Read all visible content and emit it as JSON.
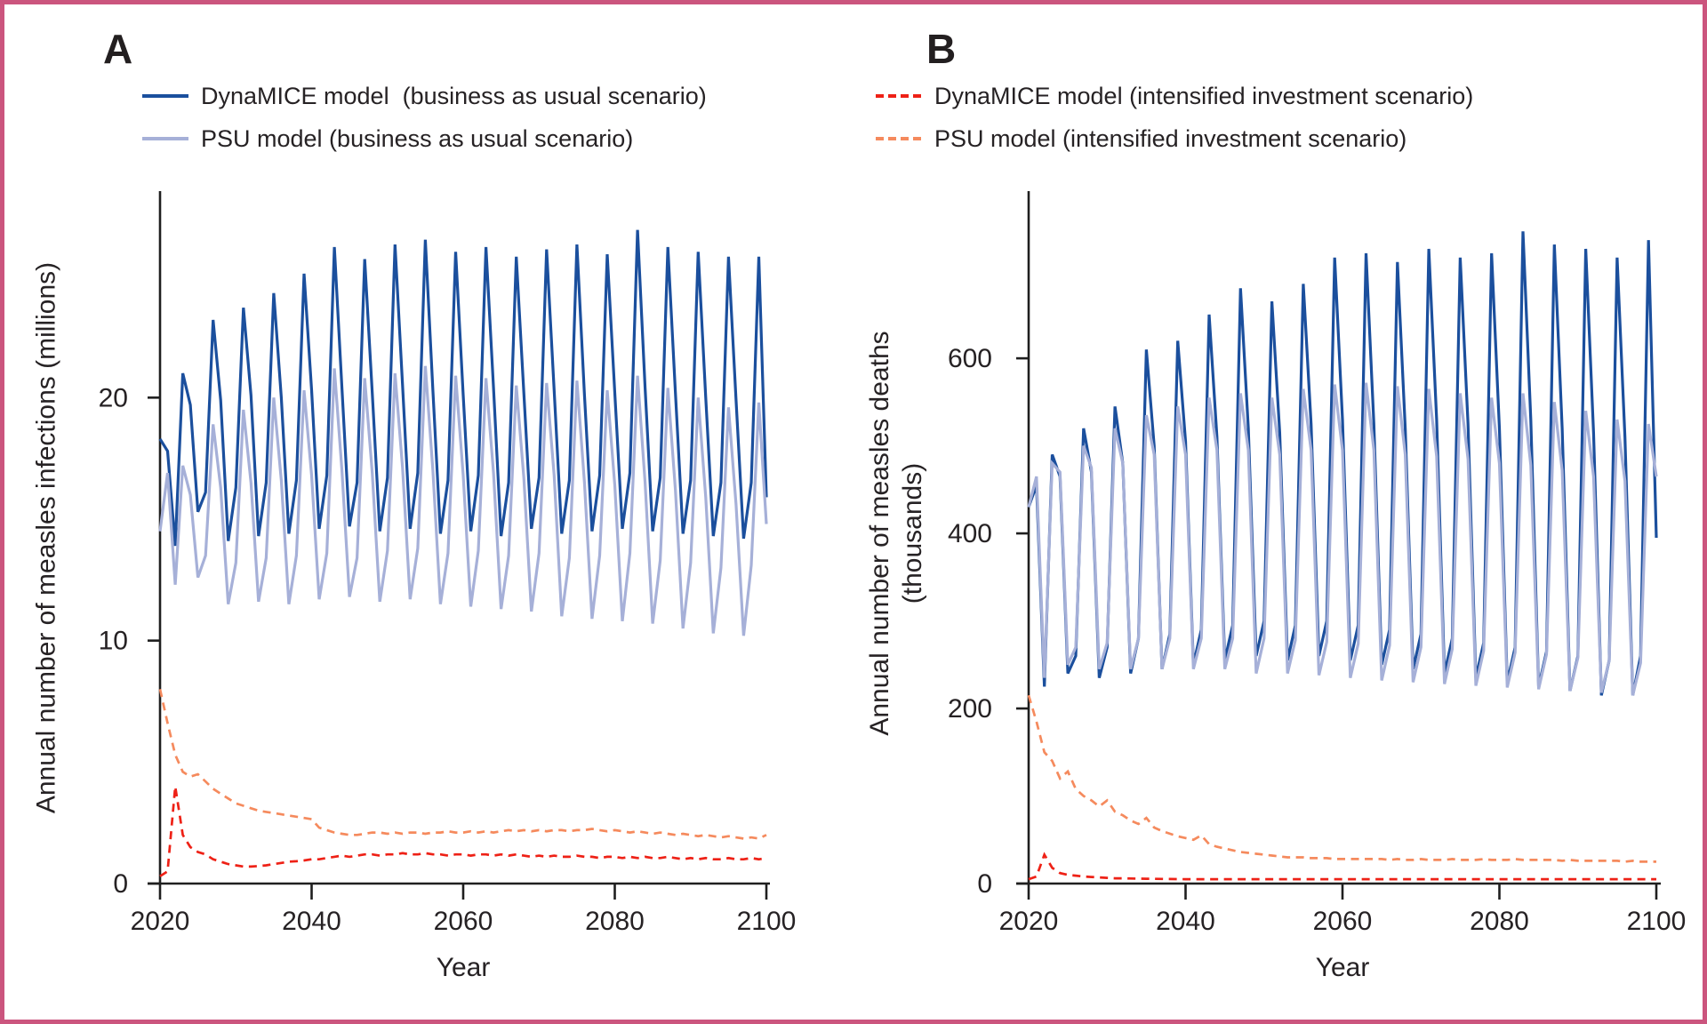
{
  "figure": {
    "border_color": "#cb557e",
    "panels": [
      {
        "letter": "A",
        "ylabel": "Annual number of measles infections (millions)",
        "ylabel_line2": "",
        "xlabel": "Year",
        "legend": [
          {
            "label": "DynaMICE model  (business as usual scenario)"
          },
          {
            "label": "PSU model (business as usual scenario)"
          }
        ]
      },
      {
        "letter": "B",
        "ylabel": "Annual number of measles deaths",
        "ylabel_line2": "(thousands)",
        "xlabel": "Year",
        "legend": [
          {
            "label": "DynaMICE model (intensified investment scenario)"
          },
          {
            "label": "PSU model (intensified investment scenario)"
          }
        ]
      }
    ]
  },
  "chart_data": [
    {
      "type": "line",
      "panel": "A",
      "xlabel": "Year",
      "ylabel": "Annual number of measles infections (millions)",
      "x_start": 2020,
      "x_end": 2100,
      "x_step": 1,
      "xticks": [
        2020,
        2040,
        2060,
        2080,
        2100
      ],
      "yticks": [
        0,
        10,
        20
      ],
      "ylim": [
        0,
        28.5
      ],
      "grid": false,
      "legend_position": "top-left",
      "series": [
        {
          "name": "DynaMICE model (business as usual scenario)",
          "color": "#1b4f9d",
          "dash": null,
          "width": 3.2,
          "values": [
            18.3,
            17.8,
            13.9,
            21.0,
            19.7,
            15.3,
            16.1,
            23.2,
            19.9,
            14.1,
            16.3,
            23.7,
            20.1,
            14.3,
            16.5,
            24.3,
            20.0,
            14.4,
            16.6,
            25.1,
            20.3,
            14.6,
            16.8,
            26.2,
            20.4,
            14.7,
            16.5,
            25.7,
            20.2,
            14.5,
            16.7,
            26.3,
            20.5,
            14.6,
            16.9,
            26.5,
            20.3,
            14.4,
            16.6,
            26.0,
            20.1,
            14.5,
            16.8,
            26.2,
            20.4,
            14.3,
            16.5,
            25.8,
            20.2,
            14.6,
            16.7,
            26.1,
            20.3,
            14.4,
            16.6,
            26.3,
            20.1,
            14.5,
            16.8,
            25.9,
            20.2,
            14.6,
            16.9,
            26.9,
            20.4,
            14.5,
            16.7,
            26.2,
            20.2,
            14.4,
            16.6,
            26.0,
            20.0,
            14.3,
            16.5,
            25.8,
            19.9,
            14.2,
            16.5,
            25.8,
            15.9
          ]
        },
        {
          "name": "PSU model (business as usual scenario)",
          "color": "#a6b0d8",
          "dash": null,
          "width": 3.2,
          "values": [
            14.5,
            16.9,
            12.3,
            17.2,
            16.0,
            12.6,
            13.5,
            18.9,
            16.3,
            11.5,
            13.2,
            19.5,
            16.5,
            11.6,
            13.4,
            20.0,
            16.6,
            11.5,
            13.5,
            20.3,
            16.8,
            11.7,
            13.6,
            21.2,
            17.0,
            11.8,
            13.4,
            20.8,
            16.9,
            11.6,
            13.7,
            21.0,
            17.1,
            11.7,
            13.8,
            21.3,
            17.0,
            11.5,
            13.6,
            20.9,
            16.8,
            11.4,
            13.7,
            20.8,
            16.9,
            11.3,
            13.5,
            20.5,
            16.7,
            11.2,
            13.6,
            20.6,
            16.8,
            11.0,
            13.4,
            20.7,
            16.5,
            10.9,
            13.5,
            20.3,
            16.4,
            10.8,
            13.6,
            20.9,
            16.5,
            10.7,
            13.3,
            20.4,
            16.2,
            10.5,
            13.2,
            20.0,
            15.9,
            10.3,
            13.0,
            19.6,
            15.6,
            10.2,
            13.1,
            19.8,
            14.8
          ]
        },
        {
          "name": "PSU model (intensified investment scenario)",
          "color": "#f58a5d",
          "dash": "9 6.5",
          "width": 2.7,
          "values": [
            8.0,
            6.6,
            5.3,
            4.6,
            4.4,
            4.5,
            4.2,
            3.9,
            3.7,
            3.5,
            3.3,
            3.2,
            3.1,
            3.0,
            2.95,
            2.9,
            2.85,
            2.8,
            2.75,
            2.7,
            2.65,
            2.3,
            2.2,
            2.1,
            2.05,
            2.0,
            2.0,
            2.05,
            2.1,
            2.1,
            2.05,
            2.1,
            2.05,
            2.1,
            2.1,
            2.05,
            2.1,
            2.1,
            2.15,
            2.1,
            2.1,
            2.15,
            2.1,
            2.15,
            2.1,
            2.15,
            2.2,
            2.15,
            2.2,
            2.15,
            2.2,
            2.15,
            2.2,
            2.2,
            2.15,
            2.2,
            2.2,
            2.25,
            2.2,
            2.15,
            2.2,
            2.15,
            2.1,
            2.15,
            2.1,
            2.05,
            2.1,
            2.05,
            2.0,
            2.05,
            2.0,
            1.95,
            2.0,
            1.95,
            1.9,
            1.95,
            1.9,
            1.85,
            1.9,
            1.85,
            2.0
          ]
        },
        {
          "name": "DynaMICE model (intensified investment scenario)",
          "color": "#ee2116",
          "dash": "9 6.5",
          "width": 2.7,
          "values": [
            0.3,
            0.5,
            4.0,
            2.0,
            1.5,
            1.3,
            1.2,
            1.0,
            0.9,
            0.8,
            0.75,
            0.7,
            0.7,
            0.72,
            0.75,
            0.8,
            0.85,
            0.9,
            0.92,
            0.95,
            1.0,
            1.0,
            1.05,
            1.1,
            1.15,
            1.1,
            1.15,
            1.2,
            1.2,
            1.15,
            1.2,
            1.2,
            1.25,
            1.2,
            1.2,
            1.25,
            1.2,
            1.2,
            1.15,
            1.2,
            1.2,
            1.15,
            1.2,
            1.2,
            1.15,
            1.2,
            1.15,
            1.2,
            1.15,
            1.1,
            1.15,
            1.1,
            1.15,
            1.1,
            1.1,
            1.15,
            1.1,
            1.1,
            1.05,
            1.1,
            1.1,
            1.05,
            1.1,
            1.05,
            1.1,
            1.05,
            1.05,
            1.1,
            1.05,
            1.0,
            1.05,
            1.0,
            1.05,
            1.0,
            1.0,
            1.05,
            1.0,
            1.0,
            1.05,
            1.0,
            1.05
          ]
        }
      ]
    },
    {
      "type": "line",
      "panel": "B",
      "xlabel": "Year",
      "ylabel": "Annual number of measles deaths (thousands)",
      "x_start": 2020,
      "x_end": 2100,
      "x_step": 1,
      "xticks": [
        2020,
        2040,
        2060,
        2080,
        2100
      ],
      "yticks": [
        0,
        200,
        400,
        600
      ],
      "ylim": [
        0,
        791
      ],
      "grid": false,
      "legend_position": "top-left",
      "series": [
        {
          "name": "DynaMICE model (business as usual scenario)",
          "color": "#1b4f9d",
          "dash": null,
          "width": 3.2,
          "values": [
            430,
            455,
            225,
            490,
            465,
            240,
            260,
            520,
            470,
            235,
            270,
            545,
            480,
            240,
            280,
            610,
            500,
            245,
            285,
            620,
            505,
            250,
            290,
            650,
            510,
            255,
            295,
            680,
            520,
            260,
            300,
            665,
            515,
            255,
            295,
            685,
            525,
            260,
            300,
            715,
            530,
            255,
            295,
            720,
            525,
            250,
            290,
            710,
            520,
            245,
            285,
            725,
            530,
            240,
            280,
            715,
            525,
            235,
            275,
            720,
            520,
            230,
            270,
            745,
            530,
            225,
            265,
            730,
            520,
            220,
            260,
            725,
            515,
            215,
            255,
            715,
            510,
            215,
            260,
            735,
            395
          ]
        },
        {
          "name": "PSU model (business as usual scenario)",
          "color": "#a6b0d8",
          "dash": null,
          "width": 3.2,
          "values": [
            430,
            465,
            235,
            480,
            470,
            250,
            270,
            500,
            475,
            245,
            275,
            520,
            480,
            245,
            280,
            535,
            490,
            245,
            280,
            545,
            490,
            245,
            280,
            555,
            495,
            245,
            280,
            560,
            495,
            240,
            280,
            555,
            490,
            240,
            278,
            565,
            495,
            238,
            276,
            570,
            495,
            235,
            274,
            572,
            495,
            232,
            272,
            568,
            490,
            230,
            270,
            565,
            488,
            228,
            268,
            560,
            485,
            226,
            266,
            555,
            480,
            224,
            264,
            560,
            478,
            222,
            262,
            550,
            472,
            220,
            258,
            540,
            465,
            218,
            255,
            530,
            460,
            215,
            252,
            525,
            465
          ]
        },
        {
          "name": "PSU model (intensified investment scenario)",
          "color": "#f58a5d",
          "dash": "9 6.5",
          "width": 2.7,
          "values": [
            215,
            185,
            150,
            140,
            120,
            128,
            108,
            100,
            95,
            88,
            95,
            82,
            78,
            72,
            68,
            75,
            64,
            60,
            57,
            54,
            52,
            50,
            55,
            45,
            42,
            40,
            38,
            36,
            35,
            34,
            33,
            32,
            31,
            30,
            30,
            30,
            29,
            29,
            29,
            28,
            28,
            28,
            28,
            28,
            28,
            28,
            27,
            28,
            27,
            27,
            28,
            27,
            27,
            27,
            28,
            27,
            27,
            27,
            28,
            27,
            27,
            27,
            28,
            27,
            27,
            27,
            27,
            27,
            26,
            27,
            26,
            26,
            26,
            26,
            26,
            26,
            25,
            26,
            25,
            25,
            25
          ]
        },
        {
          "name": "DynaMICE model (intensified investment scenario)",
          "color": "#ee2116",
          "dash": "9 6.5",
          "width": 2.7,
          "values": [
            5,
            8,
            33,
            18,
            12,
            10,
            9,
            8,
            7.5,
            7,
            6.5,
            6,
            6,
            5.8,
            5.6,
            5.5,
            5.4,
            5.3,
            5.2,
            5.1,
            5,
            5,
            5,
            5,
            5,
            5,
            5,
            5,
            5,
            5,
            5,
            5,
            5,
            5,
            5,
            5,
            5,
            5,
            5,
            5,
            5,
            5,
            5,
            5,
            5,
            5,
            5,
            5,
            5,
            5,
            5,
            5,
            5,
            5,
            5,
            5,
            5,
            5,
            5,
            5,
            5,
            5,
            5,
            5,
            5,
            5,
            5,
            5,
            5,
            5,
            5,
            5,
            5,
            5,
            5,
            5,
            5,
            5,
            5,
            5,
            5
          ]
        }
      ]
    }
  ]
}
